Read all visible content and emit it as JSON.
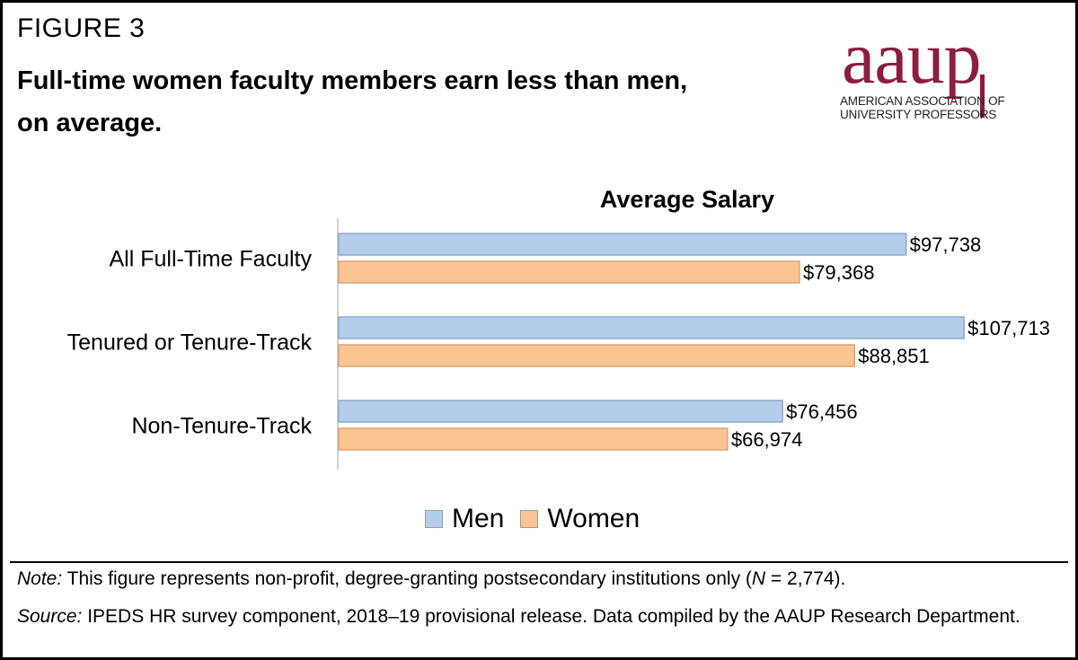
{
  "figure_label": "FIGURE 3",
  "headline_line1": "Full-time women faculty members earn less than men,",
  "headline_line2": "on average.",
  "logo": {
    "word": "aaup",
    "sub_line1": "AMERICAN ASSOCIATION OF",
    "sub_line2": "UNIVERSITY PROFESSORS",
    "color": "#8c1d3f"
  },
  "chart_data": {
    "type": "bar",
    "orientation": "horizontal",
    "title": "Average Salary",
    "categories": [
      "All Full-Time Faculty",
      "Tenured or Tenure-Track",
      "Non-Tenure-Track"
    ],
    "series": [
      {
        "name": "Men",
        "values": [
          97738,
          107713,
          76456
        ],
        "labels": [
          "$97,738",
          "$107,713",
          "$76,456"
        ],
        "color": "#b4cdeb",
        "stroke": "#8fa9c9"
      },
      {
        "name": "Women",
        "values": [
          79368,
          88851,
          66974
        ],
        "labels": [
          "$79,368",
          "$88,851",
          "$66,974"
        ],
        "color": "#fbc593",
        "stroke": "#d7a575"
      }
    ],
    "xlim": [
      0,
      108000
    ],
    "grid": false,
    "legend_position": "bottom"
  },
  "note": {
    "label": "Note:",
    "text_before": " This figure represents non-profit, degree-granting postsecondary institutions only (",
    "n_symbol": "N",
    "text_after": " = 2,774)."
  },
  "source": {
    "label": "Source:",
    "text": " IPEDS HR survey component, 2018–19 provisional release. Data compiled by the AAUP Research Department."
  }
}
